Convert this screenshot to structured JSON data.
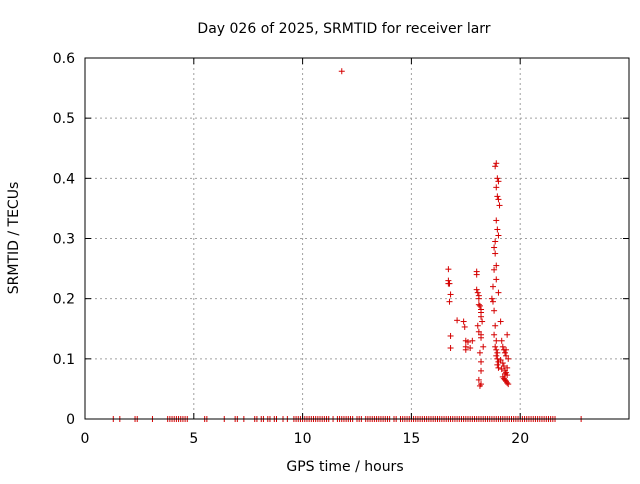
{
  "chart_data": {
    "type": "scatter",
    "title": "Day 026 of 2025, SRMTID for receiver larr",
    "xlabel": "GPS time / hours",
    "ylabel": "SRMTID / TECUs",
    "xlim": [
      0,
      25
    ],
    "ylim": [
      0,
      0.6
    ],
    "xticks": [
      0,
      5,
      10,
      15,
      20
    ],
    "yticks": [
      0,
      0.1,
      0.2,
      0.3,
      0.4,
      0.5,
      0.6
    ],
    "grid": true,
    "marker": "+",
    "color": "#d40000",
    "series": [
      {
        "name": "SRMTID",
        "zero_x": [
          1.3,
          1.6,
          2.3,
          2.4,
          3.1,
          3.8,
          3.9,
          4.0,
          4.1,
          4.2,
          4.3,
          4.4,
          4.5,
          4.6,
          4.7,
          5.5,
          5.6,
          6.4,
          6.9,
          7.0,
          7.3,
          7.8,
          7.9,
          8.1,
          8.2,
          8.4,
          8.5,
          8.7,
          8.8,
          9.1,
          9.3,
          9.6,
          9.7,
          9.8,
          9.9,
          10.0,
          10.1,
          10.2,
          10.3,
          10.4,
          10.5,
          10.6,
          10.7,
          10.8,
          10.9,
          11.0,
          11.1,
          11.2,
          11.4,
          11.6,
          11.7,
          11.8,
          11.9,
          12.0,
          12.1,
          12.2,
          12.3,
          12.5,
          12.6,
          12.7,
          12.9,
          13.0,
          13.1,
          13.2,
          13.3,
          13.4,
          13.5,
          13.6,
          13.7,
          13.8,
          13.9,
          14.0,
          14.2,
          14.3,
          14.5,
          14.6,
          14.7,
          14.8,
          14.9,
          15.0,
          15.1,
          15.2,
          15.3,
          15.4,
          15.5,
          15.6,
          15.7,
          15.8,
          15.9,
          16.0,
          16.1,
          16.2,
          16.3,
          16.4,
          16.5,
          16.6,
          16.7,
          16.8,
          16.9,
          17.0,
          17.1,
          17.2,
          17.3,
          17.4,
          17.5,
          17.6,
          17.7,
          17.8,
          17.9,
          18.0,
          18.1,
          18.2,
          18.3,
          18.4,
          18.5,
          18.6,
          18.7,
          18.8,
          18.9,
          19.0,
          19.1,
          19.2,
          19.3,
          19.4,
          19.5,
          19.6,
          19.7,
          19.8,
          19.9,
          20.0,
          20.1,
          20.2,
          20.3,
          20.4,
          20.5,
          20.6,
          20.7,
          20.8,
          20.9,
          21.0,
          21.1,
          21.2,
          21.3,
          21.4,
          21.5,
          21.6,
          22.8
        ],
        "x": [
          11.8,
          16.7,
          16.7,
          16.7,
          16.75,
          16.8,
          16.75,
          16.8,
          16.8,
          17.1,
          17.4,
          17.45,
          17.5,
          17.5,
          17.5,
          17.6,
          17.7,
          17.8,
          18.0,
          18.0,
          18.0,
          18.05,
          18.1,
          18.1,
          18.1,
          18.15,
          18.2,
          18.2,
          18.2,
          18.25,
          18.05,
          18.1,
          18.2,
          18.2,
          18.3,
          18.15,
          18.2,
          18.2,
          18.1,
          18.2,
          18.15,
          18.7,
          18.75,
          18.8,
          18.85,
          18.8,
          18.9,
          18.85,
          18.9,
          18.95,
          18.9,
          18.95,
          19.0,
          18.95,
          19.0,
          18.9,
          18.85,
          18.95,
          19.0,
          18.9,
          18.95,
          19.0,
          19.05,
          18.9,
          18.95,
          19.0,
          18.85,
          18.8,
          18.85,
          18.9,
          18.8,
          18.9,
          18.75,
          19.0,
          19.1,
          19.15,
          19.2,
          19.25,
          19.3,
          19.35,
          19.1,
          19.2,
          19.25,
          19.15,
          19.3,
          19.35,
          19.4,
          19.2,
          19.25,
          19.3,
          19.35,
          19.4,
          19.45,
          19.3,
          19.4,
          19.45,
          19.35,
          19.4
        ],
        "y": [
          0.578,
          0.249,
          0.23,
          0.225,
          0.225,
          0.207,
          0.195,
          0.138,
          0.118,
          0.164,
          0.162,
          0.153,
          0.13,
          0.12,
          0.115,
          0.128,
          0.118,
          0.13,
          0.245,
          0.24,
          0.215,
          0.21,
          0.205,
          0.2,
          0.19,
          0.188,
          0.182,
          0.177,
          0.17,
          0.162,
          0.155,
          0.145,
          0.14,
          0.135,
          0.12,
          0.11,
          0.095,
          0.08,
          0.065,
          0.058,
          0.055,
          0.2,
          0.195,
          0.18,
          0.155,
          0.14,
          0.13,
          0.12,
          0.115,
          0.11,
          0.105,
          0.1,
          0.095,
          0.09,
          0.085,
          0.425,
          0.42,
          0.4,
          0.395,
          0.385,
          0.37,
          0.365,
          0.355,
          0.33,
          0.315,
          0.305,
          0.295,
          0.285,
          0.275,
          0.255,
          0.248,
          0.232,
          0.22,
          0.21,
          0.162,
          0.13,
          0.12,
          0.115,
          0.11,
          0.105,
          0.098,
          0.093,
          0.088,
          0.083,
          0.08,
          0.077,
          0.073,
          0.07,
          0.067,
          0.065,
          0.063,
          0.06,
          0.058,
          0.075,
          0.085,
          0.1,
          0.115,
          0.14
        ]
      }
    ]
  }
}
